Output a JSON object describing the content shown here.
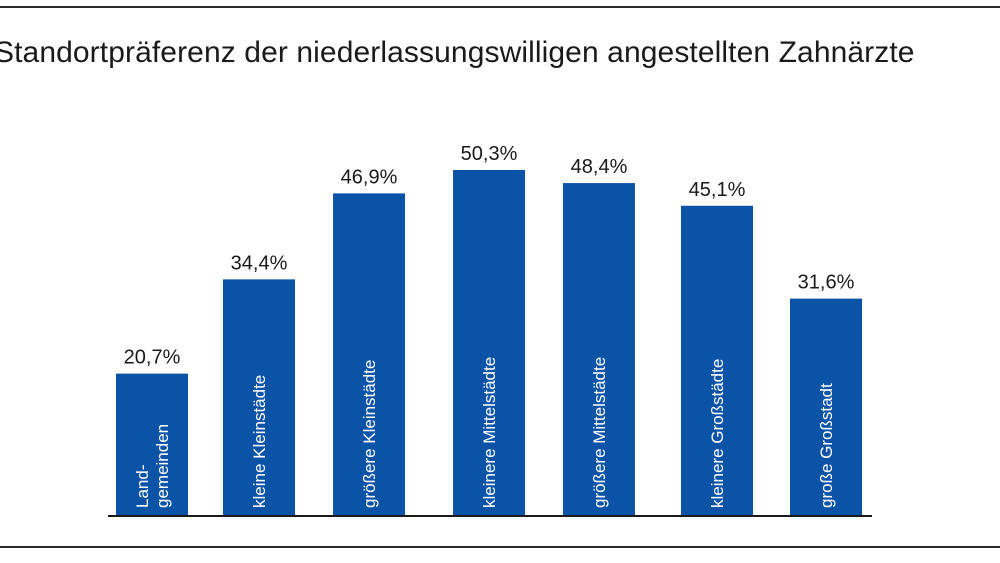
{
  "chart_data": {
    "type": "bar",
    "title": "Standortpräferenz der niederlassungswilligen angestellten Zahnärzte",
    "categories": [
      "Land-\ngemeinden",
      "kleine Kleinstädte",
      "größere Kleinstädte",
      "kleinere Mittelstädte",
      "größere Mittelstädte",
      "kleinere Großstädte",
      "große Großstadt"
    ],
    "values": [
      20.7,
      34.4,
      46.9,
      50.3,
      48.4,
      45.1,
      31.6
    ],
    "value_labels": [
      "20,7%",
      "34,4%",
      "46,9%",
      "50,3%",
      "48,4%",
      "45,1%",
      "31,6%"
    ],
    "unit": "%",
    "xlabel": "",
    "ylabel": "",
    "ylim": [
      0,
      50.3
    ],
    "grid": false,
    "legend": "none",
    "colors": {
      "bar": "#0b53a6",
      "text": "#1a1a1a",
      "bar_text": "#ffffff",
      "baseline": "#1a1a1a",
      "frame": "#2b2b2b"
    }
  }
}
